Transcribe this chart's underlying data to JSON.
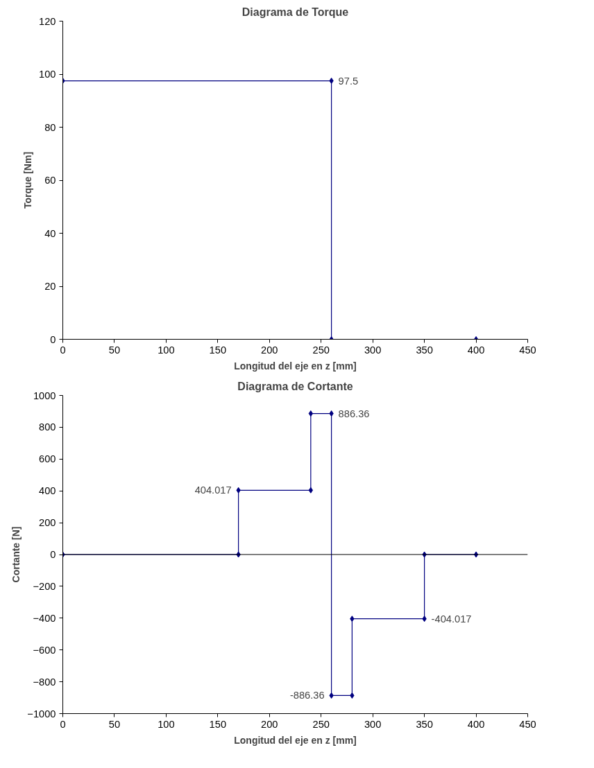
{
  "chart_data": [
    {
      "type": "line",
      "title": "Diagrama de Torque",
      "xlabel": "Longitud del eje en z [mm]",
      "ylabel": "Torque [Nm]",
      "marker": "diamond",
      "grid": false,
      "xlim": [
        0,
        450
      ],
      "xticks": [
        0,
        50,
        100,
        150,
        200,
        250,
        300,
        350,
        400,
        450
      ],
      "ylim": [
        0,
        120
      ],
      "yticks": [
        0,
        20,
        40,
        60,
        80,
        100,
        120
      ],
      "series": [
        {
          "color": "#000080",
          "x": [
            0,
            260,
            260,
            400
          ],
          "values": [
            97.5,
            97.5,
            0,
            0
          ]
        }
      ],
      "annotations": [
        {
          "text": "97.5",
          "x": 260,
          "y": 97.5
        }
      ]
    },
    {
      "type": "line",
      "title": "Diagrama de Cortante",
      "xlabel": "Longitud del eje en z [mm]",
      "ylabel": "Cortante [N]",
      "marker": "diamond",
      "grid": false,
      "xlim": [
        0,
        450
      ],
      "xticks": [
        0,
        50,
        100,
        150,
        200,
        250,
        300,
        350,
        400,
        450
      ],
      "ylim": [
        -1000,
        1000
      ],
      "yticks": [
        -1000,
        -800,
        -600,
        -400,
        -200,
        0,
        200,
        400,
        600,
        800,
        1000
      ],
      "series": [
        {
          "color": "#000080",
          "x": [
            0,
            170,
            170,
            240,
            240,
            260,
            260,
            280,
            280,
            350,
            350,
            400
          ],
          "values": [
            0,
            0,
            404.017,
            404.017,
            886.36,
            886.36,
            -886.36,
            -886.36,
            -404.017,
            -404.017,
            0,
            0
          ]
        }
      ],
      "ref_lines": [
        {
          "axis": "y",
          "value": 0,
          "color": "#000000"
        }
      ],
      "annotations": [
        {
          "text": "404.017",
          "x": 170,
          "y": 404.017
        },
        {
          "text": "886.36",
          "x": 260,
          "y": 886.36
        },
        {
          "text": "-886.36",
          "x": 260,
          "y": -886.36
        },
        {
          "text": "-404.017",
          "x": 350,
          "y": -404.017
        }
      ]
    }
  ]
}
